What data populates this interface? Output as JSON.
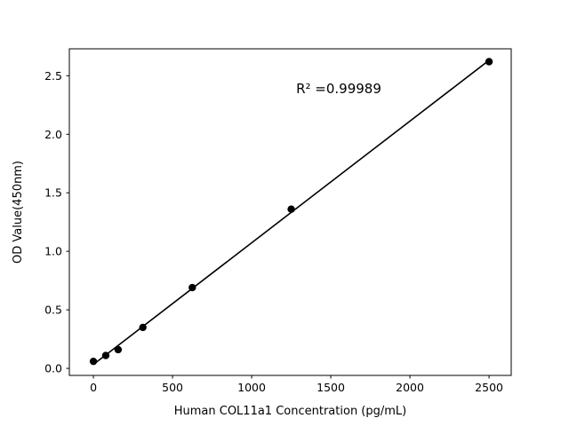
{
  "chart_data": {
    "type": "scatter",
    "title": "",
    "xlabel": "Human COL11a1 Concentration (pg/mL)",
    "ylabel": "OD Value(450nm)",
    "x": [
      0,
      78.125,
      156.25,
      312.5,
      625,
      1250,
      2500
    ],
    "y": [
      0.06,
      0.11,
      0.16,
      0.35,
      0.69,
      1.36,
      2.62
    ],
    "fit_line": true,
    "xlim": [
      -152,
      2640
    ],
    "ylim": [
      -0.06,
      2.73
    ],
    "xticks": [
      0,
      500,
      1000,
      1500,
      2000,
      2500
    ],
    "xtick_labels": [
      "0",
      "500",
      "1000",
      "1500",
      "2000",
      "2500"
    ],
    "yticks": [
      0.0,
      0.5,
      1.0,
      1.5,
      2.0,
      2.5
    ],
    "ytick_labels": [
      "0.0",
      "0.5",
      "1.0",
      "1.5",
      "2.0",
      "2.5"
    ],
    "annotation": {
      "text": "R² =0.99989",
      "x": 1550,
      "y": 2.35
    },
    "grid": false,
    "legend": null,
    "marker_color": "#000000",
    "line_color": "#000000",
    "axis_color": "#000000",
    "background": "#ffffff"
  }
}
